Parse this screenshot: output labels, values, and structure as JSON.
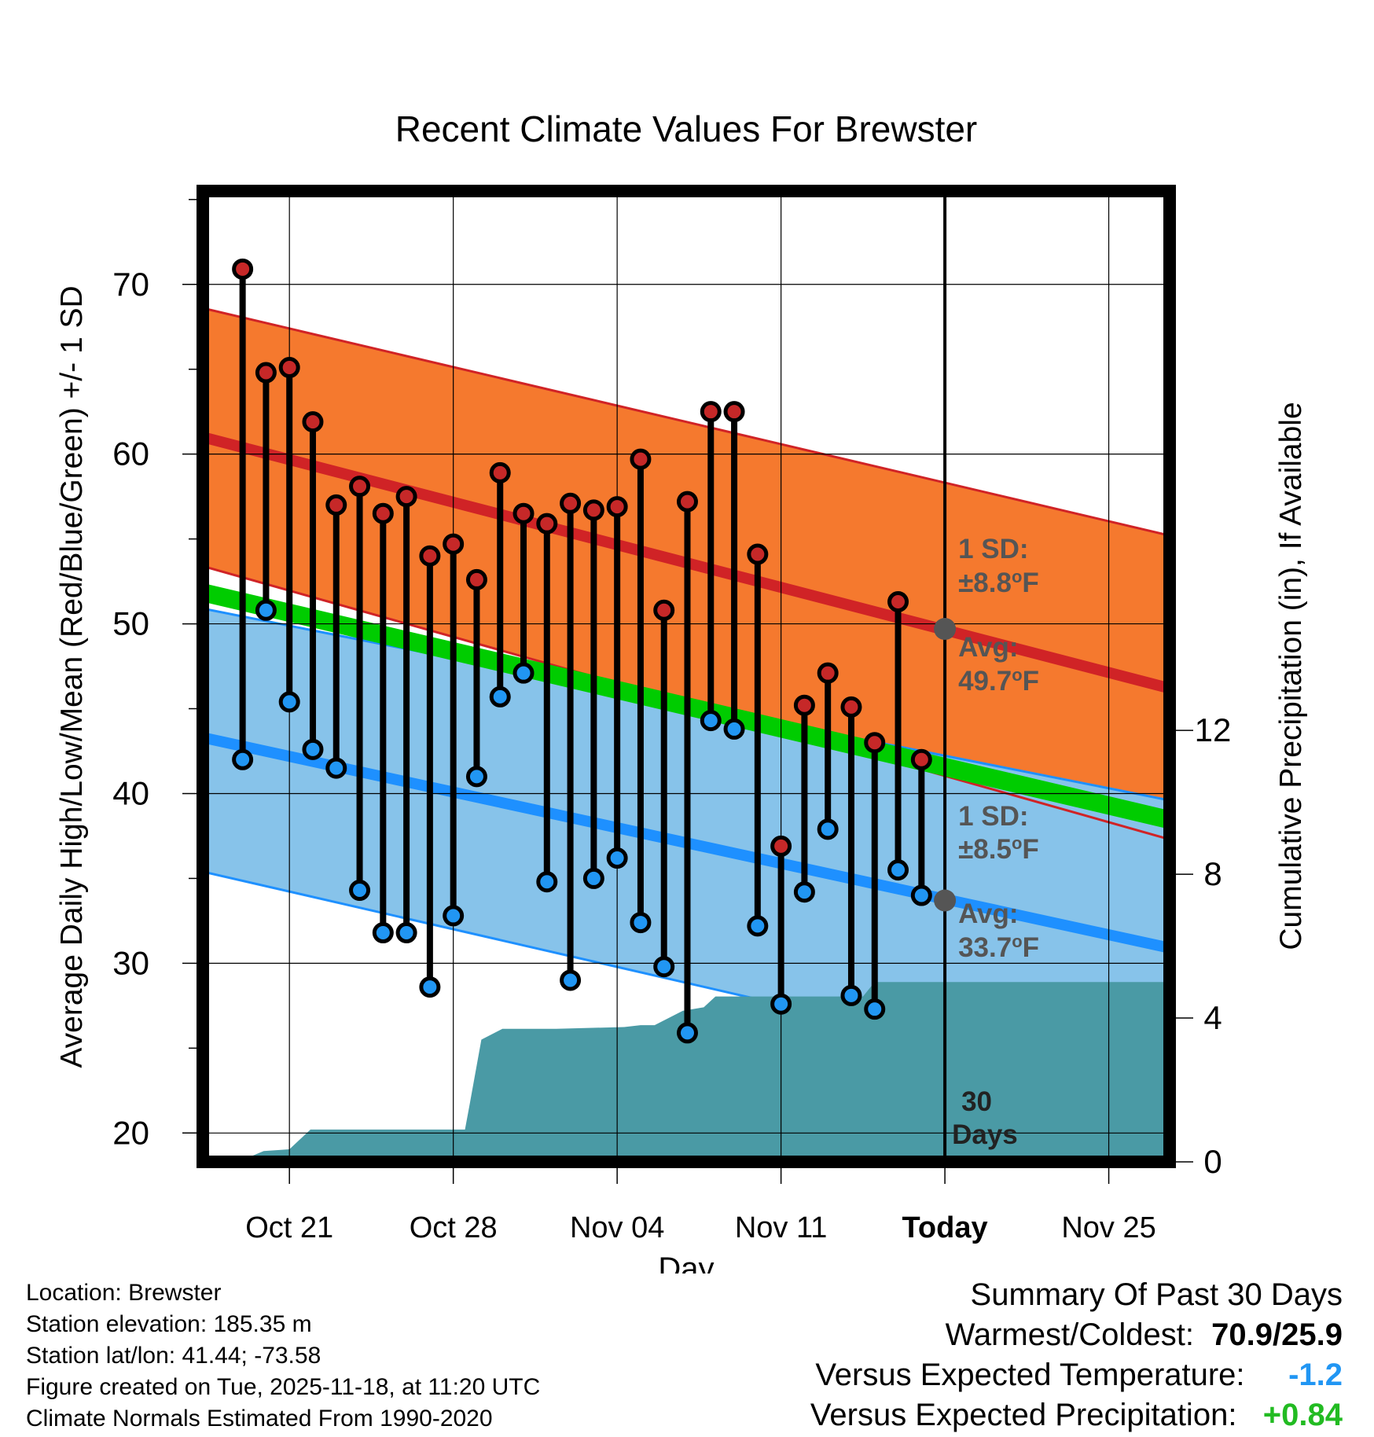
{
  "colors": {
    "high_band": "#f5792e",
    "high_line": "#d02326",
    "low_band": "#87c3ea",
    "low_line": "#1e90ff",
    "mean_band": "#00cc00",
    "precip": "#4a9aa5",
    "high_dot": "#c62828",
    "low_dot": "#2196f3",
    "avg_marker": "#555555",
    "annotation": "#555555",
    "temp_deviation": "#2196f3",
    "precip_deviation": "#22bb22"
  },
  "chart_data": {
    "type": "line",
    "title": "Recent Climate Values For Brewster",
    "xlabel": "Day",
    "ylabel_left": "Average Daily High/Low/Mean (Red/Blue/Green) +/- 1 SD",
    "ylabel_right": "Cumulative Precipitation (in), If Available",
    "x_range_days": [
      -31.7,
      9.6
    ],
    "ylim": [
      18.3,
      75.5
    ],
    "ylim_right": [
      0,
      27
    ],
    "y_ticks_left": [
      20,
      30,
      40,
      50,
      60,
      70
    ],
    "y_ticks_right": [
      0,
      4,
      8,
      12
    ],
    "x_ticks": [
      {
        "day": -28,
        "label": "Oct 21"
      },
      {
        "day": -21,
        "label": "Oct 28"
      },
      {
        "day": -14,
        "label": "Nov 04"
      },
      {
        "day": -7,
        "label": "Nov 11"
      },
      {
        "day": 0,
        "label": "Today"
      },
      {
        "day": 7,
        "label": "Nov 25"
      }
    ],
    "today_day": 0,
    "normals": {
      "high_mean": {
        "start": 61.0,
        "end": 46.2
      },
      "high_upper": {
        "start": 68.6,
        "end": 55.2
      },
      "high_lower": {
        "start": 53.4,
        "end": 37.3
      },
      "low_mean": {
        "start": 43.3,
        "end": 30.9
      },
      "low_upper": {
        "start": 50.9,
        "end": 39.6
      },
      "low_lower": {
        "start": 35.4,
        "end": 22.3
      },
      "mean_upper": {
        "start": 52.4,
        "end": 39.0
      },
      "mean_lower": {
        "start": 51.3,
        "end": 37.9
      }
    },
    "daily": {
      "days": [
        -30,
        -29,
        -28,
        -27,
        -26,
        -25,
        -24,
        -23,
        -22,
        -21,
        -20,
        -19,
        -18,
        -17,
        -16,
        -15,
        -14,
        -13,
        -12,
        -11,
        -10,
        -9,
        -8,
        -7,
        -6,
        -5,
        -4,
        -3,
        -2,
        -1
      ],
      "highs": [
        70.9,
        64.8,
        65.1,
        61.9,
        57.0,
        58.1,
        56.5,
        57.5,
        54.0,
        54.7,
        52.6,
        58.9,
        56.5,
        55.9,
        57.1,
        56.7,
        56.9,
        59.7,
        50.8,
        57.2,
        62.5,
        62.5,
        54.1,
        36.9,
        45.2,
        47.1,
        45.1,
        43.0,
        51.3,
        42.0
      ],
      "lows": [
        42.0,
        50.8,
        45.4,
        42.6,
        41.5,
        34.3,
        31.8,
        31.8,
        28.6,
        32.8,
        41.0,
        45.7,
        47.1,
        34.8,
        29.0,
        35.0,
        36.2,
        32.4,
        29.8,
        25.9,
        44.3,
        43.8,
        32.2,
        27.6,
        34.2,
        37.9,
        28.1,
        27.3,
        35.5,
        34.0
      ]
    },
    "precip": {
      "days": [
        -31.7,
        -30.2,
        -29.1,
        -28.0,
        -27.1,
        -25.5,
        -21.0,
        -20.5,
        -20.3,
        -19.8,
        -18.9,
        -16.6,
        -13.7,
        -13.0,
        -12.4,
        -11.2,
        -10.3,
        -9.8,
        -8.9,
        -3.5,
        -3.0,
        9.6
      ],
      "values": [
        0,
        0,
        0.3,
        0.35,
        0.9,
        0.9,
        0.9,
        0.9,
        1.6,
        3.4,
        3.7,
        3.7,
        3.75,
        3.8,
        3.8,
        4.2,
        4.3,
        4.6,
        4.6,
        4.6,
        5.0,
        5.0
      ]
    },
    "annotations": {
      "high_sd_label": "1 SD:",
      "high_sd_value": "±8.8",
      "high_avg_label": "Avg:",
      "high_avg_value": "49.7",
      "low_sd_label": "1 SD:",
      "low_sd_value": "±8.5",
      "low_avg_label": "Avg:",
      "low_avg_value": "33.7",
      "degree_symbol": "o",
      "unit": "F",
      "window_value": "30",
      "window_unit": "Days",
      "high_avg_today": 49.7,
      "low_avg_today": 33.7
    }
  },
  "footer": {
    "location": "Location: Brewster",
    "elevation": "Station elevation: 185.35 m",
    "latlon": "Station lat/lon: 41.44; -73.58",
    "created": "Figure created on Tue, 2025-11-18, at 11:20 UTC",
    "normals": "Climate Normals Estimated From 1990-2020"
  },
  "summary": {
    "title": "Summary Of Past 30 Days",
    "warm_cold_label": "Warmest/Coldest:",
    "warm_cold_value": "70.9/25.9",
    "temp_label": "Versus Expected Temperature:",
    "temp_value": "-1.2",
    "precip_label": "Versus Expected Precipitation:",
    "precip_value": "+0.84"
  }
}
